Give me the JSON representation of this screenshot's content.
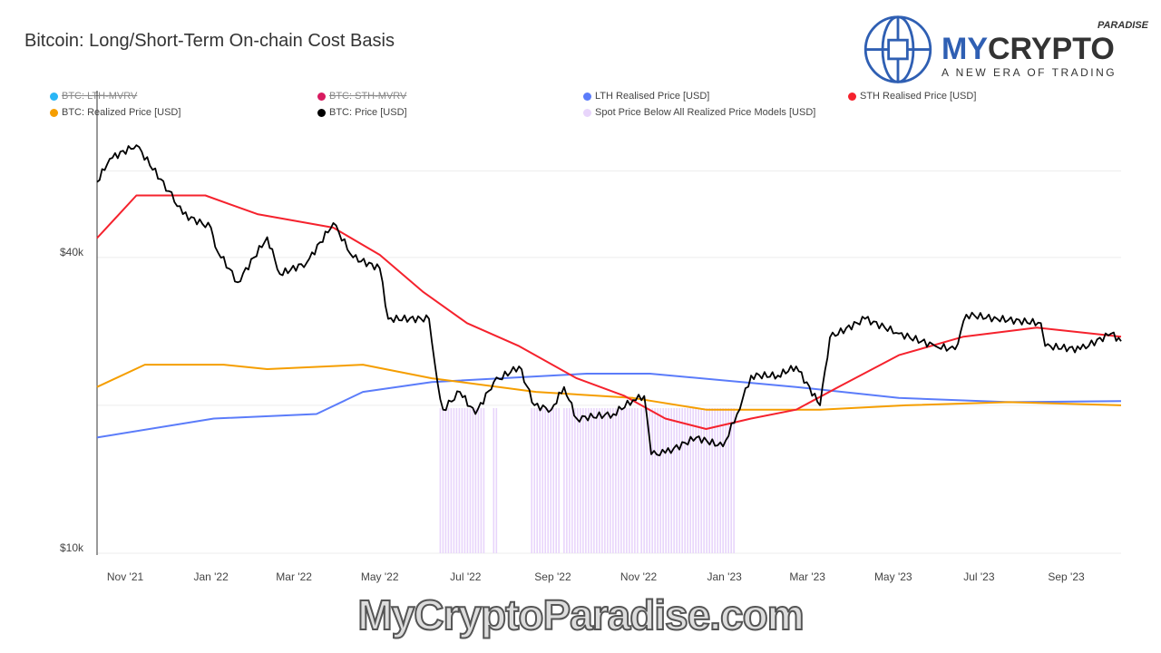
{
  "chart_data": {
    "type": "line",
    "title": "Bitcoin: Long/Short-Term On-chain Cost Basis",
    "yscale": "log",
    "ylim": [
      10000,
      82000
    ],
    "xlim": [
      "2021-10-12",
      "2023-10-10"
    ],
    "y_ticks": [
      {
        "value": 10000,
        "label": "$10k"
      },
      {
        "value": 20000,
        "label": ""
      },
      {
        "value": 40000,
        "label": "$40k"
      },
      {
        "value": 60000,
        "label": ""
      }
    ],
    "x_ticks": [
      {
        "date": "2021-11-01",
        "label": "Nov '21"
      },
      {
        "date": "2022-01-01",
        "label": "Jan '22"
      },
      {
        "date": "2022-03-01",
        "label": "Mar '22"
      },
      {
        "date": "2022-05-01",
        "label": "May '22"
      },
      {
        "date": "2022-07-01",
        "label": "Jul '22"
      },
      {
        "date": "2022-09-01",
        "label": "Sep '22"
      },
      {
        "date": "2022-11-01",
        "label": "Nov '22"
      },
      {
        "date": "2023-01-01",
        "label": "Jan '23"
      },
      {
        "date": "2023-03-01",
        "label": "Mar '23"
      },
      {
        "date": "2023-05-01",
        "label": "May '23"
      },
      {
        "date": "2023-07-01",
        "label": "Jul '23"
      },
      {
        "date": "2023-09-01",
        "label": "Sep '23"
      }
    ],
    "grid": true,
    "legend_placement": "top",
    "legend": [
      {
        "name": "BTC: LTH-MVRV",
        "color": "#29b6f6",
        "hidden": true
      },
      {
        "name": "BTC: STH-MVRV",
        "color": "#d81b60",
        "hidden": true
      },
      {
        "name": "LTH Realised Price [USD]",
        "color": "#5b7cfa",
        "hidden": false
      },
      {
        "name": "STH Realised Price [USD]",
        "color": "#f5222d",
        "hidden": false
      },
      {
        "name": "BTC: Realized Price [USD]",
        "color": "#f59e00",
        "hidden": false
      },
      {
        "name": "BTC: Price [USD]",
        "color": "#000000",
        "hidden": false
      },
      {
        "name": "Spot Price Below All Realized Price Models [USD]",
        "color": "#e8d5fb",
        "hidden": false
      }
    ],
    "series": [
      {
        "name": "BTC: Price [USD]",
        "color": "#000000",
        "points": [
          [
            "2021-10-12",
            57000
          ],
          [
            "2021-10-21",
            63500
          ],
          [
            "2021-11-09",
            67700
          ],
          [
            "2021-12-02",
            54600
          ],
          [
            "2021-12-12",
            49000
          ],
          [
            "2022-01-01",
            46000
          ],
          [
            "2022-01-04",
            42000
          ],
          [
            "2022-01-20",
            35600
          ],
          [
            "2022-02-10",
            44000
          ],
          [
            "2022-02-19",
            37000
          ],
          [
            "2022-03-10",
            39000
          ],
          [
            "2022-03-29",
            47000
          ],
          [
            "2022-04-12",
            40000
          ],
          [
            "2022-05-01",
            38000
          ],
          [
            "2022-05-07",
            30000
          ],
          [
            "2022-06-05",
            30000
          ],
          [
            "2022-06-11",
            22300
          ],
          [
            "2022-06-15",
            19600
          ],
          [
            "2022-06-27",
            21300
          ],
          [
            "2022-07-08",
            19200
          ],
          [
            "2022-07-21",
            22300
          ],
          [
            "2022-08-08",
            24000
          ],
          [
            "2022-08-19",
            20000
          ],
          [
            "2022-08-31",
            19600
          ],
          [
            "2022-09-09",
            21800
          ],
          [
            "2022-09-18",
            18800
          ],
          [
            "2022-10-14",
            19200
          ],
          [
            "2022-10-28",
            20500
          ],
          [
            "2022-11-05",
            20900
          ],
          [
            "2022-11-10",
            15900
          ],
          [
            "2022-11-20",
            16000
          ],
          [
            "2022-12-12",
            17200
          ],
          [
            "2022-12-31",
            16500
          ],
          [
            "2023-01-10",
            19200
          ],
          [
            "2023-01-20",
            23000
          ],
          [
            "2023-02-08",
            23000
          ],
          [
            "2023-02-21",
            24000
          ],
          [
            "2023-03-10",
            20000
          ],
          [
            "2023-03-17",
            27500
          ],
          [
            "2023-04-11",
            30000
          ],
          [
            "2023-05-05",
            28000
          ],
          [
            "2023-05-31",
            26400
          ],
          [
            "2023-06-14",
            26000
          ],
          [
            "2023-06-22",
            30600
          ],
          [
            "2023-07-14",
            30000
          ],
          [
            "2023-08-14",
            29400
          ],
          [
            "2023-08-17",
            26400
          ],
          [
            "2023-09-11",
            26000
          ],
          [
            "2023-10-03",
            28000
          ],
          [
            "2023-10-10",
            27000
          ]
        ]
      },
      {
        "name": "STH Realised Price [USD]",
        "color": "#f5222d",
        "points": [
          [
            "2021-10-12",
            43800
          ],
          [
            "2021-11-09",
            53500
          ],
          [
            "2021-12-28",
            53500
          ],
          [
            "2022-02-03",
            49000
          ],
          [
            "2022-03-29",
            46000
          ],
          [
            "2022-05-01",
            40500
          ],
          [
            "2022-06-01",
            34000
          ],
          [
            "2022-07-02",
            29400
          ],
          [
            "2022-08-08",
            26400
          ],
          [
            "2022-09-18",
            22700
          ],
          [
            "2022-10-22",
            20900
          ],
          [
            "2022-11-20",
            18800
          ],
          [
            "2022-12-19",
            17900
          ],
          [
            "2023-01-20",
            18800
          ],
          [
            "2023-02-21",
            19600
          ],
          [
            "2023-03-23",
            21800
          ],
          [
            "2023-05-05",
            25300
          ],
          [
            "2023-06-20",
            27600
          ],
          [
            "2023-08-11",
            28800
          ],
          [
            "2023-10-10",
            27600
          ]
        ]
      },
      {
        "name": "LTH Realised Price [USD]",
        "color": "#5b7cfa",
        "points": [
          [
            "2021-10-12",
            17200
          ],
          [
            "2022-01-03",
            18800
          ],
          [
            "2022-03-17",
            19200
          ],
          [
            "2022-04-19",
            21300
          ],
          [
            "2022-06-07",
            22300
          ],
          [
            "2022-09-25",
            23200
          ],
          [
            "2022-11-09",
            23200
          ],
          [
            "2023-02-21",
            21800
          ],
          [
            "2023-05-05",
            20700
          ],
          [
            "2023-07-22",
            20300
          ],
          [
            "2023-10-10",
            20400
          ]
        ]
      },
      {
        "name": "BTC: Realized Price [USD]",
        "color": "#f59e00",
        "points": [
          [
            "2021-10-12",
            21800
          ],
          [
            "2021-11-15",
            24200
          ],
          [
            "2022-01-10",
            24200
          ],
          [
            "2022-02-10",
            23700
          ],
          [
            "2022-04-19",
            24200
          ],
          [
            "2022-06-07",
            22700
          ],
          [
            "2022-08-20",
            21300
          ],
          [
            "2022-10-28",
            20700
          ],
          [
            "2022-12-19",
            19600
          ],
          [
            "2023-03-10",
            19600
          ],
          [
            "2023-05-10",
            20000
          ],
          [
            "2023-07-22",
            20300
          ],
          [
            "2023-10-10",
            20000
          ]
        ]
      }
    ],
    "spot_below_periods": [
      [
        "2022-06-13",
        "2022-07-15"
      ],
      [
        "2022-07-21",
        "2022-07-24"
      ],
      [
        "2022-08-17",
        "2022-09-07"
      ],
      [
        "2022-09-09",
        "2022-11-02"
      ],
      [
        "2022-11-03",
        "2023-01-08"
      ]
    ]
  },
  "logo": {
    "top": "PARADISE",
    "main_a": "MY",
    "main_b": "CRYPTO",
    "tagline": "A NEW ERA OF TRADING"
  },
  "watermark": "MyCryptoParadise.com"
}
